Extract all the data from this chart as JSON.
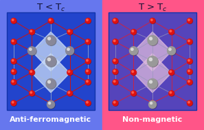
{
  "title_left": "T < T$_c$",
  "title_right": "T > T$_c$",
  "label_left": "Anti-ferromagnetic",
  "label_right": "Non-magnetic",
  "bg_left": "#6677ee",
  "bg_right": "#ff5588",
  "crystal_bg_left": "#2244cc",
  "crystal_bg_right": "#5544bb",
  "diamond_color_left": "#ccddf8",
  "diamond_color_right": "#ddbbdd",
  "atom_red": "#dd1111",
  "atom_gray_left": "#888899",
  "atom_gray_right": "#999999",
  "bond_color_left": "#cc1111",
  "bond_color_right": "#cc2244",
  "inner_bond_left": "#aabbcc",
  "inner_bond_right": "#9999bb",
  "title_color": "#111133",
  "label_color_left": "#111133",
  "label_color_right": "#111133",
  "figsize": [
    2.97,
    1.89
  ],
  "dpi": 100
}
